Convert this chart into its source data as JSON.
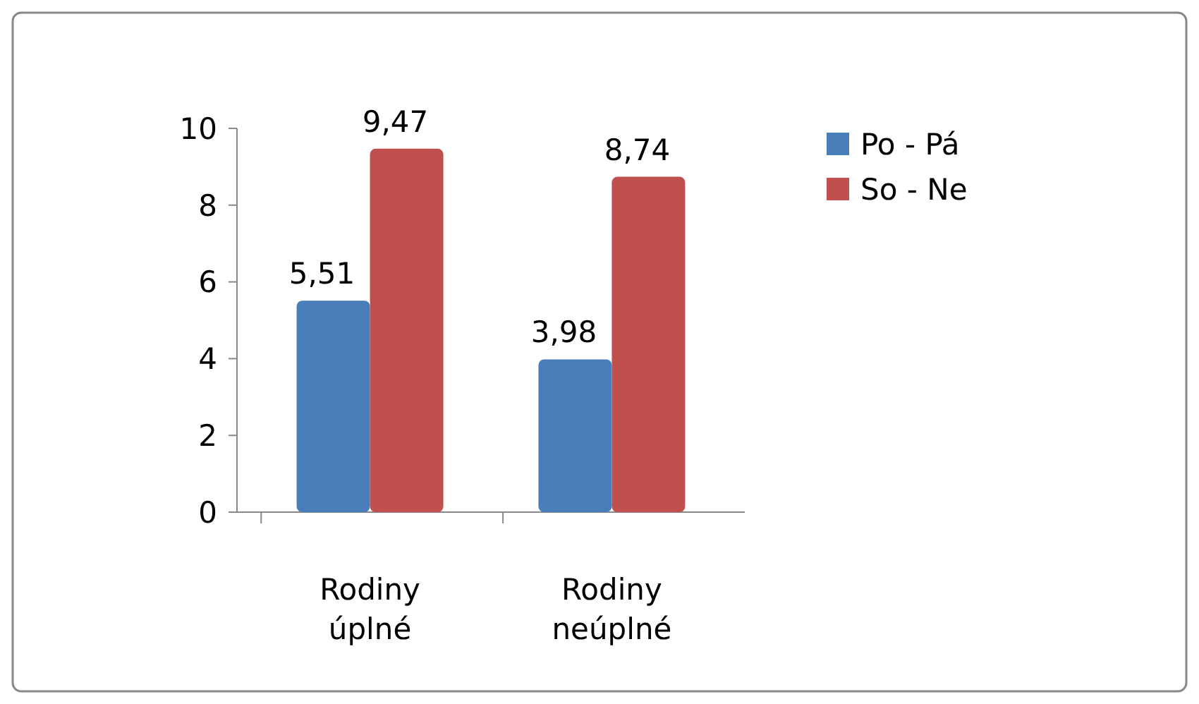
{
  "chart_data": {
    "type": "bar",
    "categories": [
      "Rodiny úplné",
      "Rodiny neúplné"
    ],
    "series": [
      {
        "name": "Po - Pá",
        "color": "#4a7ebb",
        "values": [
          5.51,
          3.98
        ],
        "value_labels": [
          "5,51",
          "3,98"
        ]
      },
      {
        "name": "So - Ne",
        "color": "#c0504d",
        "values": [
          9.47,
          8.74
        ],
        "value_labels": [
          "9,47",
          "8,74"
        ]
      }
    ],
    "ylim": [
      0,
      10
    ],
    "yticks": [
      0,
      2,
      4,
      6,
      8,
      10
    ],
    "grid": false,
    "legend": "right"
  }
}
